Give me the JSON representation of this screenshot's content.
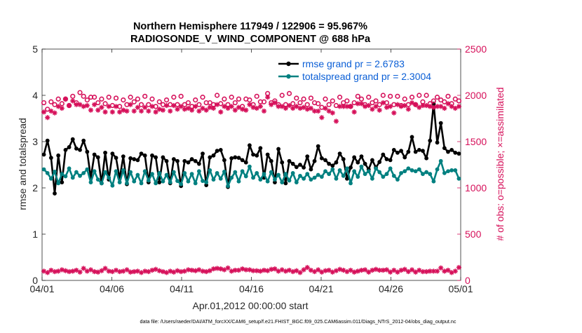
{
  "chart_data": {
    "type": "line",
    "title_line1": "Northern Hemisphere 117949 / 122906 = 95.967%",
    "title_line2": "RADIOSONDE_V_WIND_COMPONENT @ 688 hPa",
    "xlabel": "Apr.01,2012 00:00:00 start",
    "ylabel_left": "rmse and totalspread",
    "ylabel_right": "# of obs: o=possible; ×=assimilated",
    "footer": "data file: /Users/raeder/DAI/ATM_forcXX/CAM6_setup/f.e21.FHIST_BGC.f09_025.CAM6assim.011/Diags_NTrS_2012-04/obs_diag_output.nc",
    "xlim": [
      0,
      30
    ],
    "ylim_left": [
      0,
      5
    ],
    "ylim_right": [
      0,
      2500
    ],
    "x_ticks": [
      0,
      5,
      10,
      15,
      20,
      25,
      30
    ],
    "x_tick_labels": [
      "04/01",
      "04/06",
      "04/11",
      "04/16",
      "04/21",
      "04/26",
      "05/01"
    ],
    "y_left_ticks": [
      0,
      1,
      2,
      3,
      4,
      5
    ],
    "y_left_tick_labels": [
      "0",
      "1",
      "2",
      "3",
      "4",
      "5"
    ],
    "y_right_ticks": [
      0,
      500,
      1000,
      1500,
      2000,
      2500
    ],
    "y_right_tick_labels": [
      "0",
      "500",
      "1000",
      "1500",
      "2000",
      "2500"
    ],
    "colors": {
      "rmse": "#000000",
      "totalspread": "#008080",
      "obs": "#d6105a",
      "legend_text": "#0b5fd6",
      "axis": "#262626"
    },
    "series": [
      {
        "name": "rmse grand pr = 2.6783",
        "axis": "left",
        "color": "#000000",
        "values": [
          2.72,
          3.02,
          2.65,
          1.88,
          2.7,
          2.12,
          2.82,
          2.88,
          3.05,
          2.85,
          2.82,
          3.02,
          2.78,
          2.22,
          2.72,
          2.66,
          2.1,
          2.76,
          2.18,
          2.74,
          2.65,
          2.2,
          2.68,
          2.08,
          2.64,
          2.62,
          2.6,
          2.74,
          2.7,
          2.12,
          2.7,
          2.66,
          2.12,
          2.66,
          2.58,
          2.1,
          2.62,
          2.58,
          2.04,
          2.58,
          2.55,
          2.62,
          2.58,
          2.52,
          2.74,
          2.06,
          2.66,
          2.7,
          2.8,
          2.82,
          2.6,
          2.02,
          2.64,
          2.66,
          2.65,
          2.6,
          2.55,
          2.92,
          2.72,
          2.7,
          2.86,
          2.22,
          2.72,
          2.58,
          2.12,
          2.84,
          2.55,
          2.1,
          2.58,
          2.52,
          2.45,
          2.5,
          2.44,
          2.68,
          2.4,
          2.58,
          2.9,
          2.64,
          2.6,
          2.52,
          2.48,
          2.55,
          2.74,
          2.62,
          2.2,
          2.44,
          2.66,
          2.55,
          2.68,
          2.52,
          2.4,
          2.6,
          2.44,
          2.56,
          2.72,
          2.62,
          2.6,
          2.82,
          2.76,
          2.8,
          2.66,
          2.78,
          3.1,
          2.78,
          2.82,
          2.8,
          2.64,
          3.02,
          3.82,
          2.98,
          3.4,
          2.86,
          2.78,
          2.82,
          2.76,
          2.74
        ]
      },
      {
        "name": "totalspread grand pr = 2.3004",
        "axis": "left",
        "color": "#008080",
        "values": [
          2.4,
          2.32,
          2.2,
          2.35,
          2.1,
          2.3,
          2.25,
          2.42,
          2.22,
          2.34,
          2.26,
          2.32,
          2.4,
          2.12,
          2.36,
          2.18,
          2.1,
          2.34,
          2.22,
          2.05,
          2.36,
          2.12,
          2.38,
          2.1,
          2.34,
          2.14,
          2.28,
          2.1,
          2.36,
          2.16,
          2.3,
          2.1,
          2.32,
          2.14,
          2.28,
          2.12,
          2.34,
          2.15,
          2.08,
          2.32,
          2.14,
          2.3,
          2.1,
          2.36,
          2.15,
          2.12,
          2.38,
          2.18,
          2.32,
          2.2,
          2.35,
          2.04,
          2.22,
          2.34,
          2.14,
          2.36,
          2.25,
          2.46,
          2.22,
          2.32,
          2.18,
          2.3,
          2.14,
          2.34,
          2.18,
          2.28,
          2.12,
          2.3,
          2.16,
          2.32,
          2.12,
          2.26,
          2.2,
          2.3,
          2.18,
          2.22,
          2.28,
          2.24,
          2.36,
          2.3,
          2.4,
          2.2,
          2.38,
          2.26,
          2.42,
          2.1,
          2.36,
          2.24,
          2.46,
          2.3,
          2.36,
          2.2,
          2.42,
          2.34,
          2.24,
          2.3,
          2.42,
          2.26,
          2.18,
          2.32,
          2.36,
          2.42,
          2.38,
          2.36,
          2.4,
          2.3,
          2.34,
          2.3,
          2.14,
          2.4,
          2.58,
          2.32,
          2.36,
          2.38,
          2.38,
          2.2
        ]
      },
      {
        "name": "obs possible",
        "axis": "right",
        "color": "#d6105a",
        "marker": "circle",
        "values": [
          1920,
          1850,
          1930,
          1900,
          1960,
          1910,
          1960,
          1890,
          1990,
          1920,
          2030,
          1990,
          1950,
          1980,
          1980,
          1920,
          1960,
          1910,
          1980,
          1890,
          1970,
          1880,
          1950,
          1900,
          1980,
          1930,
          1960,
          1900,
          1990,
          1900,
          1960,
          1880,
          1930,
          1900,
          1950,
          1900,
          1980,
          1900,
          1990,
          1900,
          1920,
          1880,
          1950,
          1900,
          1980,
          1920,
          1920,
          1900,
          2000,
          1910,
          1960,
          1900,
          1980,
          1920,
          1960,
          1880,
          1960,
          1950,
          1900,
          1990,
          1930,
          1930,
          2020,
          1920,
          1940,
          1900,
          2000,
          1900,
          2020,
          1910,
          1970,
          1920,
          1960,
          1900,
          1970,
          1920,
          1910,
          1870,
          1960,
          1900,
          1940,
          1890,
          1980,
          1920,
          1940,
          1880,
          1920,
          1990,
          1960,
          1900,
          1980,
          1920,
          1940,
          1900,
          2000,
          1920,
          1990,
          1900,
          1990,
          1890,
          1960,
          1900,
          1980,
          1900,
          2000,
          1930,
          2000,
          1910,
          1940,
          1980,
          1950,
          1930,
          1990,
          1910,
          1960,
          1940
        ]
      },
      {
        "name": "obs assimilated",
        "axis": "right",
        "color": "#d6105a",
        "marker": "asterisk",
        "values": [
          1820,
          1760,
          1830,
          1810,
          1880,
          1860,
          1960,
          1890,
          1940,
          1900,
          1900,
          1880,
          1890,
          1840,
          1900,
          1840,
          1870,
          1820,
          1880,
          1820,
          1880,
          1820,
          1840,
          1830,
          1900,
          1830,
          1870,
          1830,
          1870,
          1830,
          1880,
          1820,
          1850,
          1840,
          1890,
          1830,
          1890,
          1850,
          1880,
          1850,
          1860,
          1840,
          1880,
          1830,
          1860,
          1840,
          1870,
          1860,
          1900,
          1820,
          1880,
          1860,
          1880,
          1840,
          1870,
          1850,
          1840,
          1900,
          1870,
          1860,
          1880,
          1830,
          1980,
          1900,
          1920,
          1880,
          1880,
          1860,
          1890,
          1860,
          1880,
          1860,
          1870,
          1850,
          1860,
          1830,
          1830,
          1760,
          1860,
          1830,
          1810,
          1720,
          1880,
          1880,
          1880,
          1880,
          1820,
          1910,
          1910,
          1880,
          1890,
          1850,
          1880,
          1840,
          1920,
          1870,
          1880,
          1810,
          1900,
          1880,
          1890,
          1850,
          1920,
          1900,
          1870,
          1890,
          1890,
          1880,
          1870,
          1880,
          1880,
          1860,
          1910,
          1880,
          1860,
          1880
        ]
      },
      {
        "name": "obs low count",
        "axis": "right",
        "color": "#d6105a",
        "marker": "asterisk",
        "values": [
          100,
          85,
          110,
          95,
          100,
          115,
          105,
          95,
          100,
          110,
          90,
          130,
          100,
          115,
          95,
          90,
          105,
          130,
          100,
          95,
          110,
          95,
          100,
          115,
          90,
          95,
          100,
          85,
          100,
          95,
          110,
          120,
          105,
          95,
          85,
          100,
          90,
          105,
          95,
          100,
          115,
          110,
          105,
          115,
          100,
          95,
          105,
          125,
          130,
          125,
          115,
          135,
          100,
          110,
          110,
          125,
          115,
          115,
          105,
          105,
          100,
          110,
          105,
          120,
          125,
          100,
          115,
          100,
          110,
          95,
          105,
          85,
          115,
          140,
          110,
          95,
          115,
          90,
          105,
          110,
          90,
          105,
          120,
          110,
          95,
          110,
          90,
          100,
          110,
          115,
          90,
          110,
          120,
          110,
          110,
          115,
          90,
          110,
          90,
          110,
          120,
          95,
          115,
          90,
          110,
          95,
          95,
          100,
          100,
          100,
          135,
          100,
          110,
          85,
          100,
          140
        ]
      }
    ],
    "legend": [
      {
        "label": "rmse grand pr = 2.6783",
        "color": "#000000"
      },
      {
        "label": "totalspread grand pr = 2.3004",
        "color": "#008080"
      }
    ]
  }
}
